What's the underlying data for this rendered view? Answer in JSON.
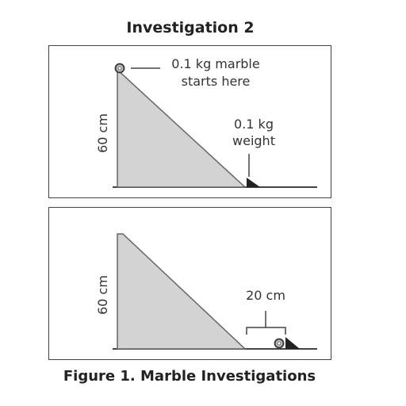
{
  "title": "Investigation 2",
  "caption": "Figure 1. Marble Investigations",
  "panel1": {
    "marble_label_line1": "0.1 kg marble",
    "marble_label_line2": "starts here",
    "weight_label_line1": "0.1 kg",
    "weight_label_line2": "weight",
    "height_label": "60 cm"
  },
  "panel2": {
    "height_label": "60 cm",
    "distance_label": "20 cm"
  },
  "colors": {
    "ramp_fill": "#d3d3d3",
    "outline": "#444444",
    "weight_fill": "#222222"
  }
}
